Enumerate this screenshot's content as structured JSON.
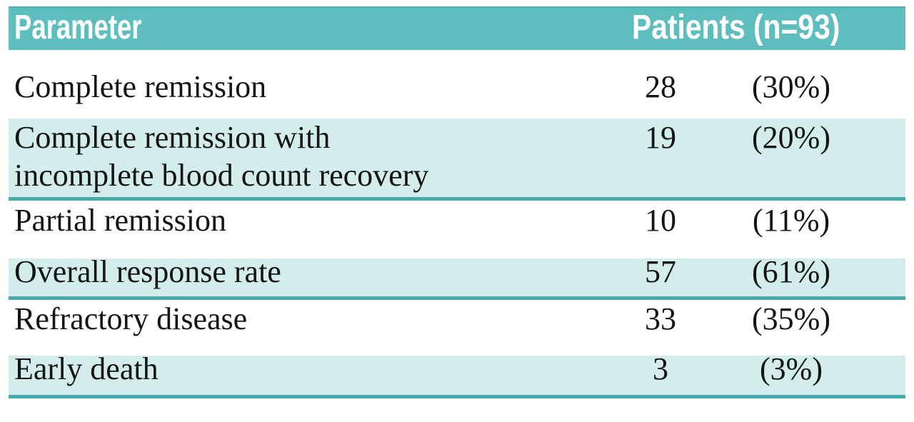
{
  "table": {
    "header": {
      "parameter": "Parameter",
      "patients": "Patients (n=93)"
    },
    "rows": [
      {
        "parameter": "Complete remission",
        "count": "28",
        "percent": "(30%)",
        "shaded": false
      },
      {
        "parameter_line1": "Complete remission with",
        "parameter_line2": "incomplete blood count recovery",
        "count": "19",
        "percent": "(20%)",
        "shaded": true
      },
      {
        "parameter": "Partial remission",
        "count": "10",
        "percent": "(11%)",
        "shaded": false
      },
      {
        "parameter": "Overall response rate",
        "count": "57",
        "percent": "(61%)",
        "shaded": true
      },
      {
        "parameter": "Refractory disease",
        "count": "33",
        "percent": "(35%)",
        "shaded": false
      },
      {
        "parameter": "Early death",
        "count": "3",
        "percent": "(3%)",
        "shaded": true
      }
    ],
    "colors": {
      "header_bg": "#5ebebe",
      "header_edge": "#54b0b0",
      "shaded_row_bg": "#d2edeb",
      "divider": "#48aaaa"
    }
  }
}
